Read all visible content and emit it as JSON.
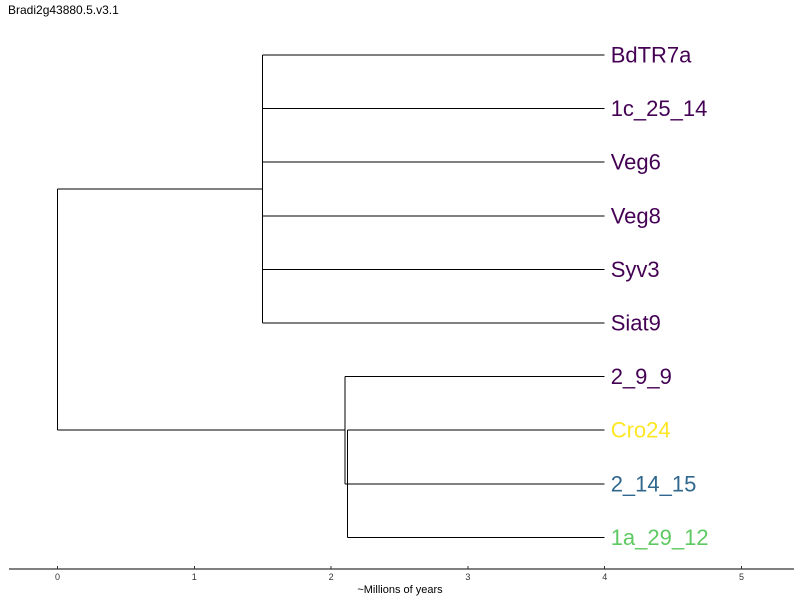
{
  "chart_data": {
    "type": "dendrogram",
    "title": "Bradi2g43880.5.v3.1",
    "xlabel": "~Millions of years",
    "xlim": [
      -0.35,
      5.4
    ],
    "xticks": [
      0,
      1,
      2,
      3,
      4,
      5
    ],
    "tips": [
      {
        "label": "BdTR7a",
        "x": 4.0,
        "color": "#440154"
      },
      {
        "label": "1c_25_14",
        "x": 4.0,
        "color": "#440154"
      },
      {
        "label": "Veg6",
        "x": 4.0,
        "color": "#440154"
      },
      {
        "label": "Veg8",
        "x": 4.0,
        "color": "#440154"
      },
      {
        "label": "Syv3",
        "x": 4.0,
        "color": "#440154"
      },
      {
        "label": "Siat9",
        "x": 4.0,
        "color": "#440154"
      },
      {
        "label": "2_9_9",
        "x": 4.0,
        "color": "#440154"
      },
      {
        "label": "Cro24",
        "x": 4.0,
        "color": "#FDE725"
      },
      {
        "label": "2_14_15",
        "x": 4.0,
        "color": "#31688E"
      },
      {
        "label": "1a_29_12",
        "x": 4.0,
        "color": "#5EC962"
      }
    ],
    "nodes": [
      {
        "id": "root",
        "x": 0.0,
        "children": [
          "cladeA",
          "cladeB"
        ]
      },
      {
        "id": "cladeA",
        "x": 1.5,
        "children": [
          0,
          1,
          2,
          3,
          4,
          5
        ]
      },
      {
        "id": "cladeB",
        "x": 2.1,
        "children": [
          6,
          "cladeC"
        ]
      },
      {
        "id": "cladeC",
        "x": 2.12,
        "children": [
          7,
          8,
          9
        ]
      }
    ]
  }
}
